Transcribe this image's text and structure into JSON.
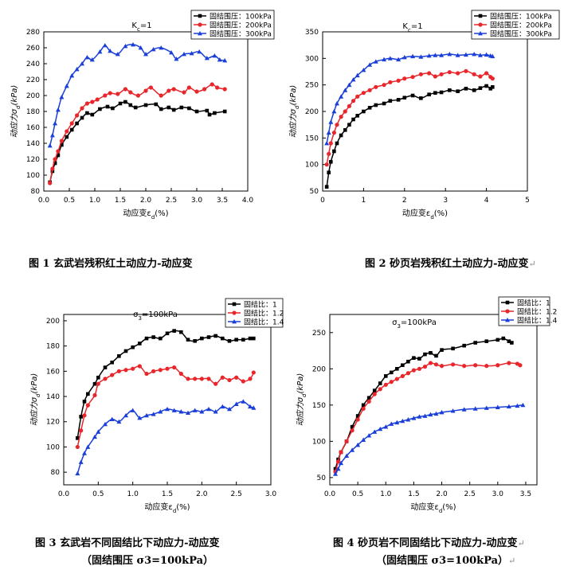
{
  "chart_data": [
    {
      "type": "line",
      "title": "Kc=1",
      "xlabel": "动应变εd(%)",
      "ylabel": "动应力σd(kPa)",
      "xlim": [
        0,
        4.0
      ],
      "ylim": [
        80,
        280
      ],
      "xticks": [
        0.0,
        0.5,
        1.0,
        1.5,
        2.0,
        2.5,
        3.0,
        3.5,
        4.0
      ],
      "xtick_labels": [
        "0.0",
        "0.5",
        "1.0",
        "1.5",
        "2.0",
        "2.5",
        "3.0",
        "3.5",
        "4.0"
      ],
      "yticks": [
        80,
        100,
        120,
        140,
        160,
        180,
        200,
        220,
        240,
        260,
        280
      ],
      "legend_position": "top-right",
      "series": [
        {
          "name": "固结围压：100kPa",
          "color": "#000000",
          "marker": "square",
          "x": [
            0.12,
            0.17,
            0.22,
            0.28,
            0.35,
            0.45,
            0.55,
            0.65,
            0.75,
            0.85,
            0.95,
            1.1,
            1.25,
            1.35,
            1.5,
            1.6,
            1.7,
            1.8,
            2.0,
            2.2,
            2.3,
            2.45,
            2.55,
            2.7,
            2.85,
            3.0,
            3.2,
            3.25,
            3.35,
            3.55
          ],
          "y": [
            91,
            105,
            115,
            125,
            138,
            148,
            157,
            165,
            172,
            178,
            176,
            183,
            186,
            184,
            190,
            192,
            188,
            185,
            188,
            189,
            183,
            185,
            182,
            185,
            184,
            180,
            181,
            176,
            178,
            180
          ]
        },
        {
          "name": "固结围压：200kPa",
          "color": "#e8262b",
          "marker": "circle",
          "x": [
            0.12,
            0.17,
            0.22,
            0.28,
            0.35,
            0.45,
            0.55,
            0.65,
            0.75,
            0.85,
            0.95,
            1.05,
            1.2,
            1.3,
            1.45,
            1.6,
            1.7,
            1.85,
            2.0,
            2.1,
            2.3,
            2.45,
            2.55,
            2.75,
            2.85,
            3.0,
            3.15,
            3.3,
            3.4,
            3.55
          ],
          "y": [
            90,
            108,
            120,
            130,
            143,
            155,
            165,
            175,
            184,
            190,
            192,
            195,
            200,
            203,
            202,
            208,
            204,
            200,
            206,
            210,
            200,
            206,
            208,
            204,
            210,
            205,
            208,
            214,
            210,
            208
          ]
        },
        {
          "name": "固结围压：300kPa",
          "color": "#1a3fd8",
          "marker": "triangle",
          "x": [
            0.12,
            0.17,
            0.22,
            0.28,
            0.35,
            0.45,
            0.55,
            0.65,
            0.75,
            0.85,
            0.95,
            1.1,
            1.2,
            1.3,
            1.45,
            1.6,
            1.75,
            1.9,
            2.0,
            2.15,
            2.3,
            2.5,
            2.6,
            2.75,
            2.9,
            3.05,
            3.2,
            3.35,
            3.45,
            3.55
          ],
          "y": [
            137,
            150,
            165,
            182,
            198,
            212,
            225,
            233,
            240,
            248,
            245,
            255,
            263,
            256,
            252,
            262,
            264,
            260,
            252,
            258,
            260,
            254,
            246,
            252,
            253,
            255,
            247,
            250,
            245,
            244
          ]
        }
      ]
    },
    {
      "type": "line",
      "title": "Kc=1",
      "xlabel": "动应变εd(%)",
      "ylabel": "动应力σd(kPa)",
      "xlim": [
        0,
        5
      ],
      "ylim": [
        50,
        350
      ],
      "xticks": [
        0,
        1,
        2,
        3,
        4,
        5
      ],
      "xtick_labels": [
        "0",
        "1",
        "2",
        "3",
        "4",
        "5"
      ],
      "yticks": [
        50,
        100,
        150,
        200,
        250,
        300,
        350
      ],
      "legend_position": "top-right",
      "series": [
        {
          "name": "固结围压：100kPa",
          "color": "#000000",
          "marker": "square",
          "x": [
            0.1,
            0.15,
            0.2,
            0.28,
            0.35,
            0.45,
            0.55,
            0.65,
            0.75,
            0.85,
            1.0,
            1.15,
            1.3,
            1.5,
            1.65,
            1.85,
            2.0,
            2.2,
            2.4,
            2.6,
            2.75,
            2.9,
            3.1,
            3.3,
            3.5,
            3.7,
            3.85,
            4.0,
            4.1,
            4.15
          ],
          "y": [
            58,
            85,
            105,
            125,
            140,
            155,
            165,
            175,
            185,
            192,
            200,
            207,
            212,
            215,
            220,
            222,
            226,
            230,
            225,
            232,
            235,
            236,
            240,
            238,
            243,
            240,
            244,
            248,
            243,
            246
          ]
        },
        {
          "name": "固结围压：200kPa",
          "color": "#e8262b",
          "marker": "circle",
          "x": [
            0.1,
            0.15,
            0.2,
            0.28,
            0.35,
            0.45,
            0.55,
            0.65,
            0.75,
            0.85,
            1.0,
            1.15,
            1.3,
            1.5,
            1.65,
            1.85,
            2.0,
            2.2,
            2.4,
            2.6,
            2.75,
            2.9,
            3.1,
            3.3,
            3.5,
            3.7,
            3.85,
            4.0,
            4.1,
            4.15
          ],
          "y": [
            100,
            120,
            140,
            160,
            175,
            190,
            200,
            210,
            220,
            228,
            235,
            240,
            246,
            250,
            255,
            258,
            262,
            265,
            270,
            272,
            266,
            270,
            274,
            272,
            276,
            270,
            266,
            272,
            265,
            262
          ]
        },
        {
          "name": "固结围压：300kPa",
          "color": "#1a3fd8",
          "marker": "triangle",
          "x": [
            0.1,
            0.15,
            0.2,
            0.28,
            0.35,
            0.45,
            0.55,
            0.65,
            0.75,
            0.85,
            1.0,
            1.15,
            1.3,
            1.5,
            1.65,
            1.85,
            2.0,
            2.2,
            2.4,
            2.6,
            2.75,
            2.9,
            3.1,
            3.3,
            3.5,
            3.7,
            3.85,
            4.0,
            4.1,
            4.15
          ],
          "y": [
            140,
            160,
            180,
            200,
            215,
            228,
            240,
            250,
            260,
            268,
            278,
            288,
            294,
            298,
            300,
            298,
            302,
            304,
            303,
            305,
            306,
            306,
            308,
            306,
            307,
            308,
            306,
            307,
            305,
            304
          ]
        }
      ]
    },
    {
      "type": "line",
      "title": "σ3=100kPa",
      "xlabel": "动应变εd(%)",
      "ylabel": "动应力σd(kPa)",
      "xlim": [
        0,
        3.0
      ],
      "ylim": [
        70,
        205
      ],
      "xticks": [
        0.0,
        0.5,
        1.0,
        1.5,
        2.0,
        2.5,
        3.0
      ],
      "xtick_labels": [
        "0.0",
        "0.5",
        "1.0",
        "1.5",
        "2.0",
        "2.5",
        "3.0"
      ],
      "yticks": [
        80,
        100,
        120,
        140,
        160,
        180,
        200
      ],
      "legend_position": "top-right",
      "series": [
        {
          "name": "固结比：1",
          "color": "#000000",
          "marker": "square",
          "x": [
            0.2,
            0.25,
            0.3,
            0.35,
            0.45,
            0.5,
            0.6,
            0.7,
            0.8,
            0.9,
            1.0,
            1.1,
            1.2,
            1.3,
            1.4,
            1.5,
            1.6,
            1.7,
            1.8,
            1.9,
            2.0,
            2.1,
            2.2,
            2.3,
            2.4,
            2.5,
            2.6,
            2.7,
            2.75
          ],
          "y": [
            107,
            124,
            136,
            142,
            150,
            155,
            163,
            167,
            172,
            176,
            179,
            182,
            186,
            187,
            186,
            190,
            192,
            191,
            185,
            184,
            186,
            187,
            188,
            186,
            184,
            185,
            185,
            186,
            186
          ]
        },
        {
          "name": "固结比：1.2",
          "color": "#e8262b",
          "marker": "circle",
          "x": [
            0.2,
            0.25,
            0.3,
            0.35,
            0.45,
            0.5,
            0.6,
            0.7,
            0.8,
            0.9,
            1.0,
            1.1,
            1.2,
            1.3,
            1.4,
            1.5,
            1.6,
            1.7,
            1.8,
            1.9,
            2.0,
            2.1,
            2.2,
            2.3,
            2.4,
            2.5,
            2.6,
            2.7,
            2.75
          ],
          "y": [
            100,
            113,
            125,
            133,
            141,
            150,
            154,
            157,
            160,
            161,
            162,
            164,
            158,
            160,
            161,
            162,
            163,
            158,
            154,
            154,
            154,
            154,
            150,
            155,
            153,
            155,
            152,
            154,
            159
          ]
        },
        {
          "name": "固结比：1.4",
          "color": "#1a3fd8",
          "marker": "triangle",
          "x": [
            0.2,
            0.25,
            0.3,
            0.35,
            0.45,
            0.5,
            0.6,
            0.7,
            0.8,
            0.9,
            1.0,
            1.1,
            1.2,
            1.3,
            1.4,
            1.5,
            1.6,
            1.7,
            1.8,
            1.9,
            2.0,
            2.1,
            2.2,
            2.3,
            2.4,
            2.5,
            2.6,
            2.7,
            2.75
          ],
          "y": [
            79,
            88,
            95,
            100,
            108,
            112,
            118,
            122,
            120,
            125,
            129,
            123,
            125,
            126,
            128,
            130,
            129,
            128,
            127,
            129,
            128,
            130,
            128,
            132,
            130,
            134,
            136,
            132,
            131
          ]
        }
      ]
    },
    {
      "type": "line",
      "title": "σ3=100kPa",
      "xlabel": "动应变εd(%)",
      "ylabel": "动应力σd(kPa)",
      "xlim": [
        0,
        3.7
      ],
      "ylim": [
        40,
        275
      ],
      "xticks": [
        0.0,
        0.5,
        1.0,
        1.5,
        2.0,
        2.5,
        3.0,
        3.5
      ],
      "xtick_labels": [
        "0.0",
        "0.5",
        "1.0",
        "1.5",
        "2.0",
        "2.5",
        "3.0",
        "3.5"
      ],
      "yticks": [
        50,
        100,
        150,
        200,
        250
      ],
      "legend_position": "top-right",
      "series": [
        {
          "name": "固结比：1",
          "color": "#000000",
          "marker": "square",
          "x": [
            0.1,
            0.15,
            0.2,
            0.3,
            0.4,
            0.5,
            0.6,
            0.7,
            0.8,
            0.9,
            1.0,
            1.1,
            1.2,
            1.3,
            1.4,
            1.5,
            1.6,
            1.7,
            1.8,
            1.9,
            2.0,
            2.2,
            2.4,
            2.6,
            2.8,
            3.0,
            3.1,
            3.2,
            3.25
          ],
          "y": [
            62,
            75,
            85,
            100,
            120,
            135,
            150,
            160,
            170,
            180,
            190,
            195,
            200,
            205,
            210,
            215,
            214,
            220,
            222,
            218,
            226,
            228,
            232,
            236,
            238,
            240,
            242,
            238,
            236
          ]
        },
        {
          "name": "固结比：1.2",
          "color": "#e8262b",
          "marker": "circle",
          "x": [
            0.1,
            0.15,
            0.2,
            0.3,
            0.4,
            0.5,
            0.6,
            0.7,
            0.8,
            0.9,
            1.0,
            1.1,
            1.2,
            1.3,
            1.4,
            1.5,
            1.6,
            1.7,
            1.8,
            1.9,
            2.0,
            2.2,
            2.4,
            2.6,
            2.8,
            3.0,
            3.2,
            3.35,
            3.4
          ],
          "y": [
            58,
            72,
            85,
            100,
            115,
            130,
            145,
            155,
            165,
            172,
            178,
            182,
            186,
            190,
            194,
            198,
            200,
            203,
            208,
            206,
            204,
            206,
            204,
            205,
            204,
            205,
            208,
            207,
            205
          ]
        },
        {
          "name": "固结比：1.4",
          "color": "#1a3fd8",
          "marker": "triangle",
          "x": [
            0.1,
            0.15,
            0.2,
            0.3,
            0.4,
            0.5,
            0.6,
            0.7,
            0.8,
            0.9,
            1.0,
            1.1,
            1.2,
            1.3,
            1.4,
            1.5,
            1.6,
            1.7,
            1.8,
            1.9,
            2.0,
            2.2,
            2.4,
            2.6,
            2.8,
            3.0,
            3.2,
            3.35,
            3.45
          ],
          "y": [
            55,
            62,
            70,
            80,
            88,
            95,
            102,
            108,
            113,
            117,
            120,
            124,
            126,
            128,
            130,
            132,
            134,
            135,
            137,
            138,
            140,
            142,
            144,
            145,
            146,
            147,
            148,
            149,
            150
          ]
        }
      ]
    }
  ],
  "captions": {
    "fig1": "图 1 玄武岩残积红土动应力-动应变",
    "fig2": "图 2 砂页岩残积红土动应力-动应变",
    "fig2_mark": "↵",
    "fig3_line1": "图 3  玄武岩不同固结比下动应力-动应变",
    "fig3_line2": "（固结围压 σ3=100kPa）",
    "fig4_line1": "图 4  砂页岩不同固结比下动应力-动应变",
    "fig4_mark": "↵",
    "fig4_line2": "（固结围压 σ3=100kPa）",
    "fig4_line2_mark": "↵"
  }
}
